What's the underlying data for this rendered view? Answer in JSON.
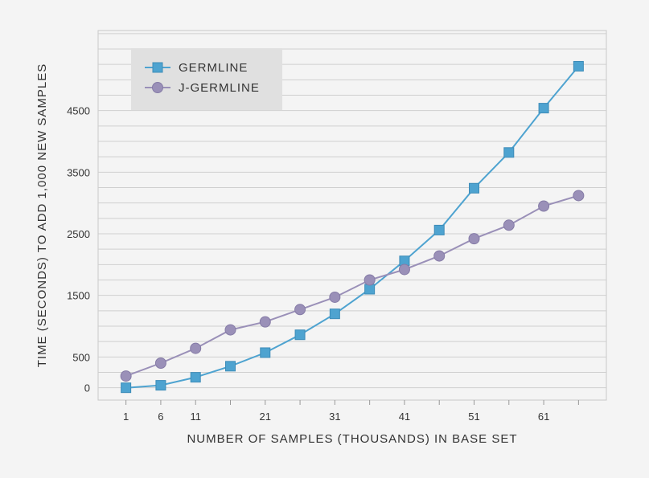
{
  "chart_data": {
    "type": "line",
    "title": "",
    "xlabel": "NUMBER OF SAMPLES (THOUSANDS) IN BASE SET",
    "ylabel": "TIME (SECONDS) TO ADD 1,000 NEW SAMPLES",
    "x": [
      1,
      6,
      11,
      16,
      21,
      26,
      31,
      36,
      41,
      46,
      51,
      56,
      61,
      66
    ],
    "xticks": [
      1,
      6,
      11,
      21,
      31,
      41,
      51,
      61
    ],
    "yticks": [
      0,
      500,
      1500,
      2500,
      3500,
      4500
    ],
    "xlim": [
      -3,
      70
    ],
    "ylim": [
      -200,
      5800
    ],
    "grid": true,
    "legend_position": "top-left",
    "series": [
      {
        "name": "GERMLINE",
        "marker": "square",
        "color": "#4ea3d0",
        "values": [
          0,
          40,
          170,
          350,
          570,
          860,
          1200,
          1600,
          2060,
          2560,
          3240,
          3820,
          4540,
          5220
        ]
      },
      {
        "name": "J-GERMLINE",
        "marker": "circle",
        "color": "#9a90b8",
        "values": [
          190,
          400,
          640,
          940,
          1070,
          1270,
          1470,
          1750,
          1920,
          2140,
          2420,
          2640,
          2950,
          3120
        ]
      }
    ]
  }
}
